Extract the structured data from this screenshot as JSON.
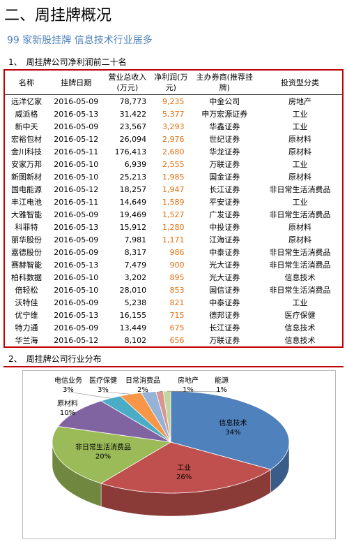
{
  "header": {
    "title": "二、周挂牌概况",
    "subtitle": "99 家新股挂牌 信息技术行业居多"
  },
  "sections": [
    "1、　周挂牌公司净利润前二十名",
    "2、　周挂牌公司行业分布"
  ],
  "table": {
    "columns": [
      "名称",
      "挂牌日期",
      "营业总收入(万元)",
      "净利润(万元)",
      "主办券商(推荐挂牌)",
      "投资型分类"
    ],
    "rows": [
      [
        "远洋亿家",
        "2016-05-09",
        "78,773",
        "9,235",
        "中金公司",
        "房地产"
      ],
      [
        "威派格",
        "2016-05-13",
        "31,422",
        "5,377",
        "申万宏源证券",
        "工业"
      ],
      [
        "新中天",
        "2016-05-09",
        "23,567",
        "3,293",
        "华鑫证券",
        "工业"
      ],
      [
        "宏裕包材",
        "2016-05-12",
        "26,094",
        "2,976",
        "世纪证券",
        "原材料"
      ],
      [
        "金川科技",
        "2016-05-11",
        "176,413",
        "2,680",
        "华龙证券",
        "原材料"
      ],
      [
        "安家万邦",
        "2016-05-10",
        "6,939",
        "2,555",
        "万联证券",
        "工业"
      ],
      [
        "新图新材",
        "2016-05-10",
        "25,213",
        "1,985",
        "国金证券",
        "原材料"
      ],
      [
        "国电能源",
        "2016-05-12",
        "18,257",
        "1,947",
        "长江证券",
        "非日常生活消费品"
      ],
      [
        "丰江电池",
        "2016-05-11",
        "14,649",
        "1,589",
        "平安证券",
        "工业"
      ],
      [
        "大雅智能",
        "2016-05-09",
        "19,469",
        "1,527",
        "广发证券",
        "非日常生活消费品"
      ],
      [
        "科菲特",
        "2016-05-13",
        "15,912",
        "1,280",
        "中投证券",
        "原材料"
      ],
      [
        "丽华股份",
        "2016-05-09",
        "7,981",
        "1,171",
        "江海证券",
        "原材料"
      ],
      [
        "嘉德股份",
        "2016-05-09",
        "8,317",
        "986",
        "中泰证券",
        "非日常生活消费品"
      ],
      [
        "赛赫智能",
        "2016-05-13",
        "7,479",
        "900",
        "光大证券",
        "非日常生活消费品"
      ],
      [
        "柏科数据",
        "2016-05-10",
        "3,202",
        "895",
        "光大证券",
        "信息技术"
      ],
      [
        "倍轻松",
        "2016-05-10",
        "28,010",
        "853",
        "国信证券",
        "非日常生活消费品"
      ],
      [
        "沃特佳",
        "2016-05-09",
        "5,238",
        "821",
        "中泰证券",
        "工业"
      ],
      [
        "优宁维",
        "2016-05-13",
        "16,155",
        "715",
        "德邦证券",
        "医疗保健"
      ],
      [
        "特力通",
        "2016-05-09",
        "13,449",
        "675",
        "长江证券",
        "信息技术"
      ],
      [
        "华兰海",
        "2016-05-12",
        "8,102",
        "656",
        "万联证券",
        "信息技术"
      ]
    ]
  },
  "chart_data": {
    "type": "pie",
    "categories": [
      "信息技术",
      "工业",
      "非日常生活消费品",
      "原材料",
      "电信业务",
      "医疗保健",
      "日常消费品",
      "房地产",
      "能源"
    ],
    "values": [
      34,
      26,
      20,
      10,
      3,
      3,
      2,
      1,
      1
    ],
    "value_labels": [
      "34%",
      "26%",
      "20%",
      "10%",
      "3%",
      "3%",
      "2%",
      "1%",
      "1%"
    ],
    "colors": [
      "#4f81bd",
      "#c0504d",
      "#9bbb59",
      "#8064a2",
      "#4bacc6",
      "#f79646",
      "#95b3d7",
      "#d99694",
      "#c3d69b"
    ]
  }
}
